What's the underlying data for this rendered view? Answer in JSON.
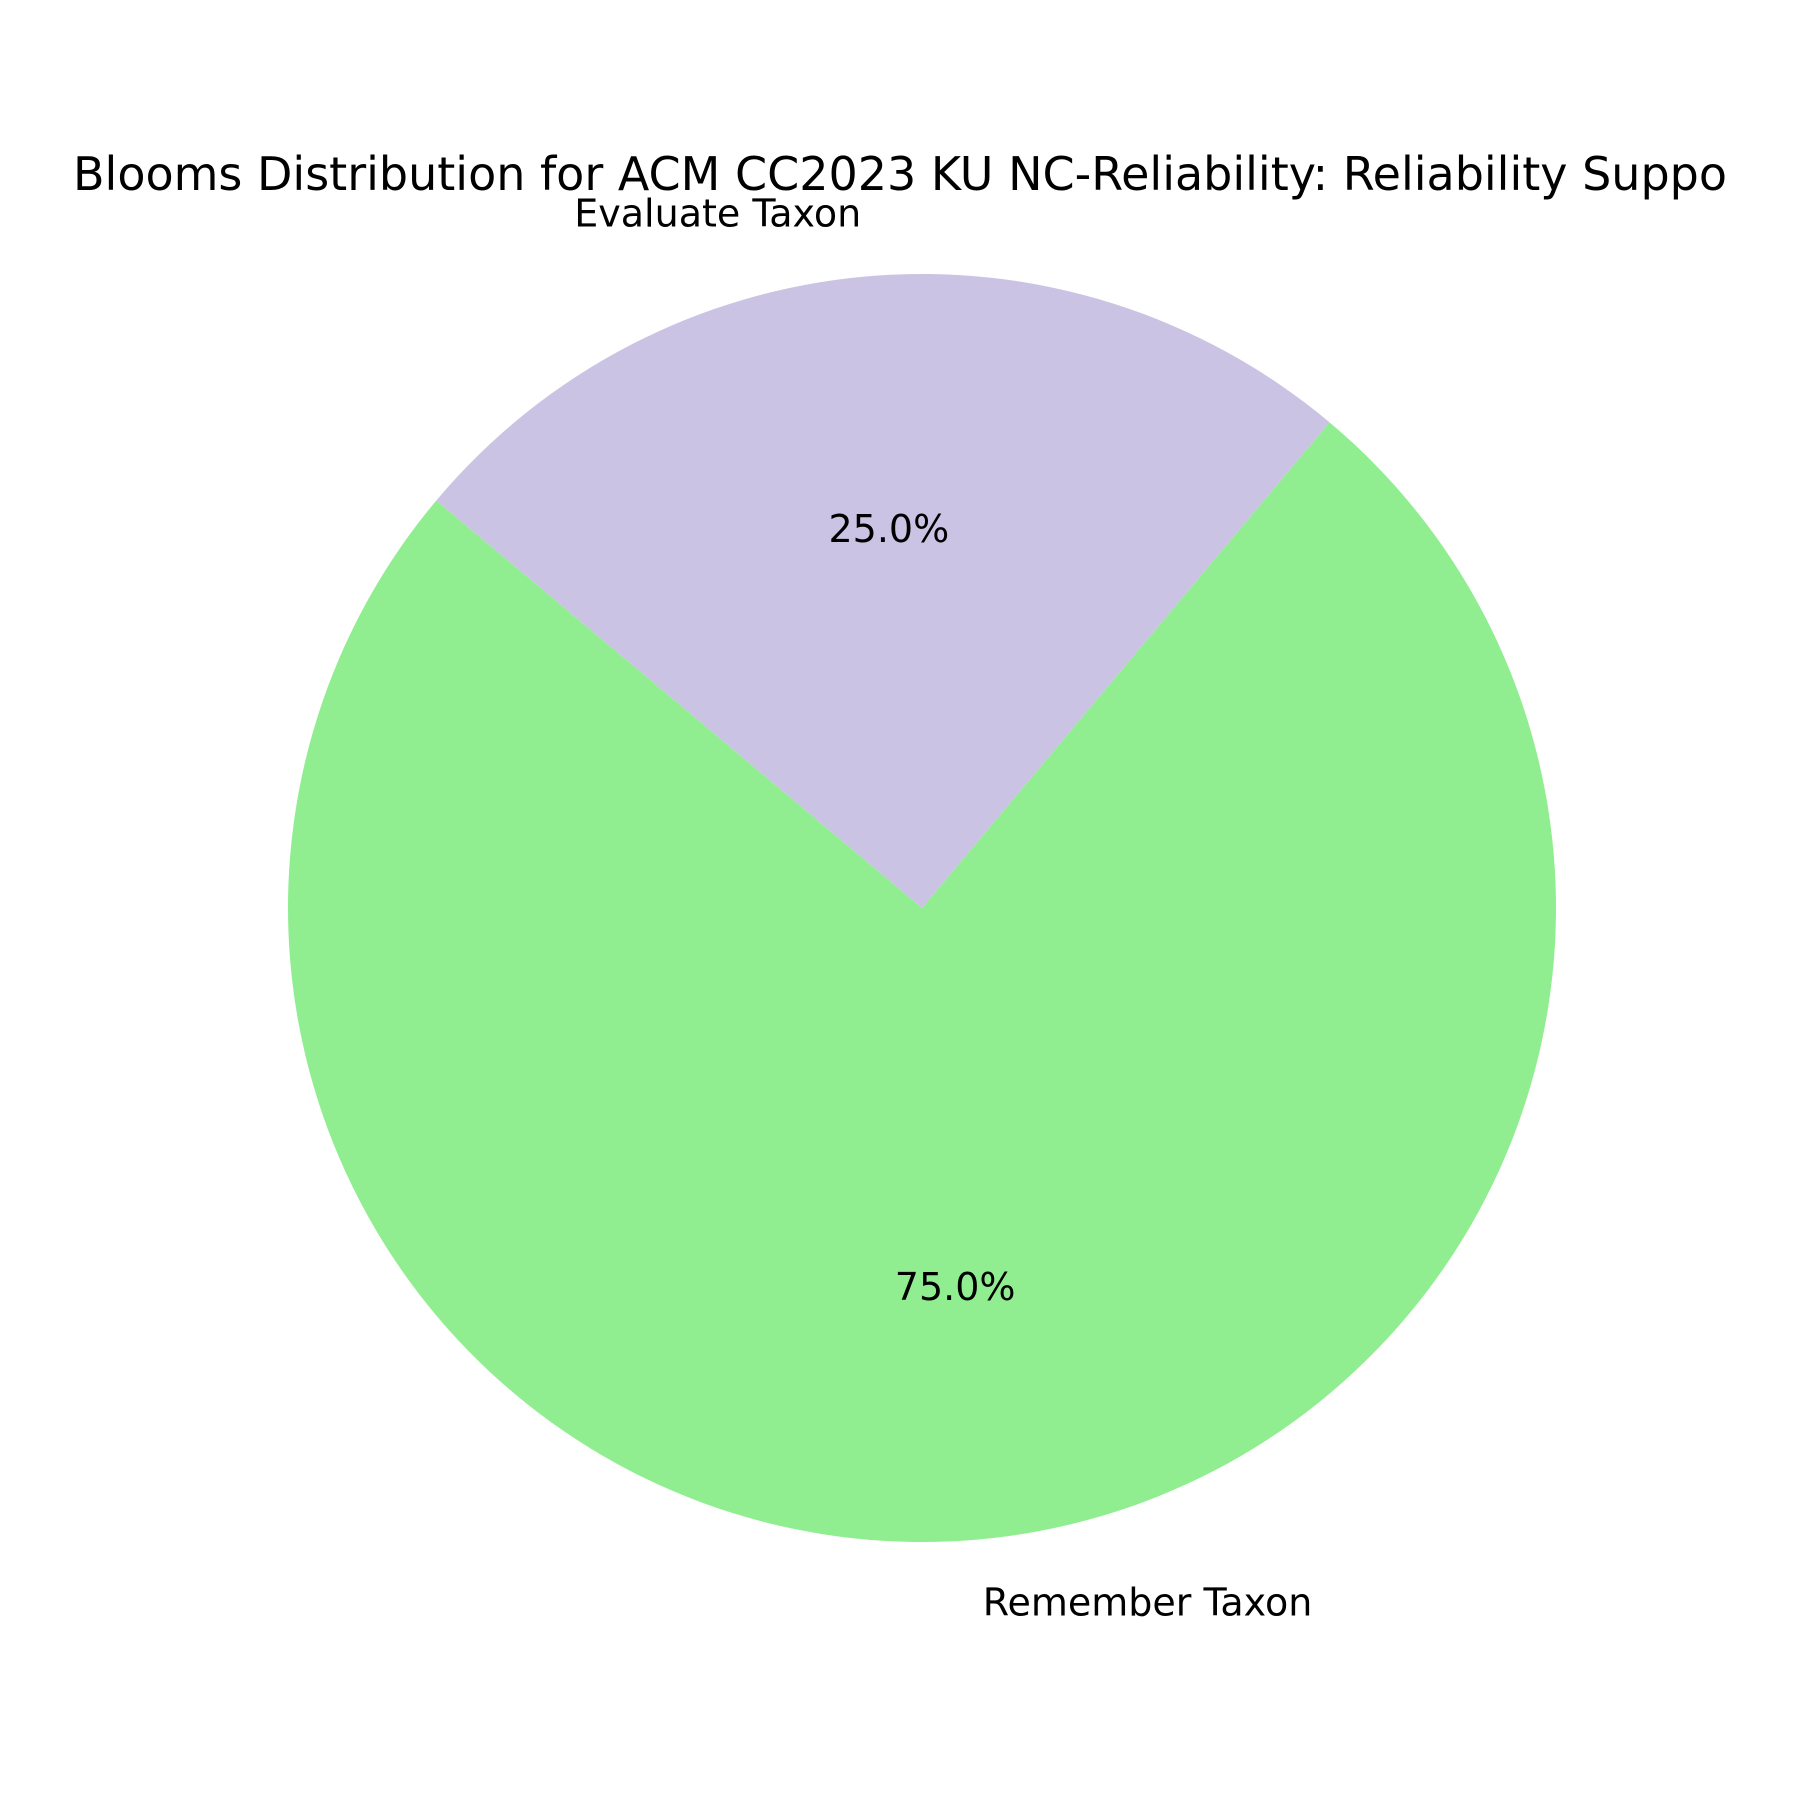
{
  "chart_data": {
    "type": "pie",
    "title": "Blooms Distribution for ACM CC2023 KU NC-Reliability: Reliability Suppo",
    "slices": [
      {
        "label": "Remember Taxon",
        "value": 75.0,
        "pct_label": "75.0%",
        "color": "#90ee90"
      },
      {
        "label": "Evaluate Taxon",
        "value": 25.0,
        "pct_label": "25.0%",
        "color": "#cbc3e3"
      }
    ],
    "start_angle_deg": 140,
    "counterclockwise": true,
    "legend": "none"
  }
}
